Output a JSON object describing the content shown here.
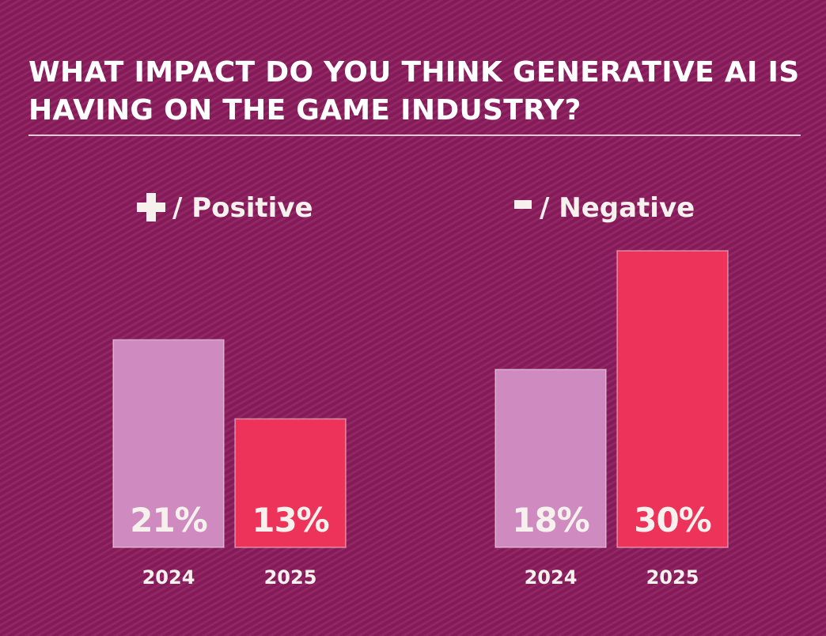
{
  "title": "WHAT IMPACT DO YOU THINK GENERATIVE AI IS HAVING ON THE GAME INDUSTRY?",
  "colors": {
    "background": "#8c1d5e",
    "bar_2024": "#cf8bbf",
    "bar_2025": "#ed3359",
    "text": "#f7f1ee"
  },
  "chart_data": [
    {
      "type": "bar",
      "title": "/ Positive",
      "icon": "plus-icon",
      "categories": [
        "2024",
        "2025"
      ],
      "values": [
        21,
        13
      ],
      "labels": [
        "21%",
        "13%"
      ],
      "ylim": [
        0,
        30
      ],
      "grid": false
    },
    {
      "type": "bar",
      "title": "/ Negative",
      "icon": "minus-icon",
      "categories": [
        "2024",
        "2025"
      ],
      "values": [
        18,
        30
      ],
      "labels": [
        "18%",
        "30%"
      ],
      "ylim": [
        0,
        30
      ],
      "grid": false
    }
  ]
}
